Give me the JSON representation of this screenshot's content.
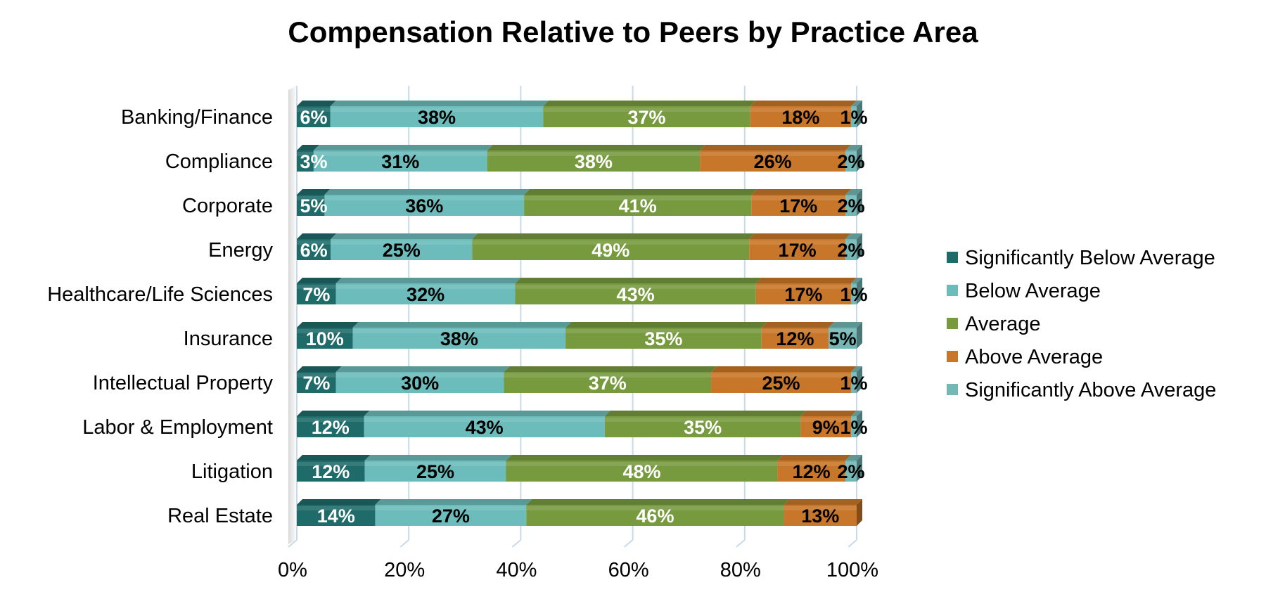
{
  "chart_data": {
    "type": "bar",
    "orientation": "horizontal",
    "stacked": "percent",
    "title": "Compensation Relative to Peers by Practice Area",
    "categories": [
      "Banking/Finance",
      "Compliance",
      "Corporate",
      "Energy",
      "Healthcare/Life Sciences",
      "Insurance",
      "Intellectual Property",
      "Labor & Employment",
      "Litigation",
      "Real Estate"
    ],
    "series": [
      {
        "name": "Significantly Below Average",
        "color": "#1f6b6a",
        "label_color": "#ffffff",
        "values": [
          6,
          3,
          5,
          6,
          7,
          10,
          7,
          12,
          12,
          14
        ]
      },
      {
        "name": "Below Average",
        "color": "#6cbcbb",
        "label_color": "#000000",
        "values": [
          38,
          31,
          36,
          25,
          32,
          38,
          30,
          43,
          25,
          27
        ]
      },
      {
        "name": "Average",
        "color": "#779a3f",
        "label_color": "#ffffff",
        "values": [
          37,
          38,
          41,
          49,
          43,
          35,
          37,
          35,
          48,
          46
        ]
      },
      {
        "name": "Above Average",
        "color": "#c8772a",
        "label_color": "#000000",
        "values": [
          18,
          26,
          17,
          17,
          17,
          12,
          25,
          9,
          12,
          13
        ]
      },
      {
        "name": "Significantly Above Average",
        "color": "#74b7b5",
        "label_color": "#000000",
        "values": [
          1,
          2,
          2,
          2,
          1,
          5,
          1,
          1,
          2,
          null
        ]
      }
    ],
    "x_ticks": [
      "0%",
      "20%",
      "40%",
      "60%",
      "80%",
      "100%"
    ],
    "xlim": [
      0,
      100
    ],
    "grid": true,
    "legend_position": "right"
  }
}
